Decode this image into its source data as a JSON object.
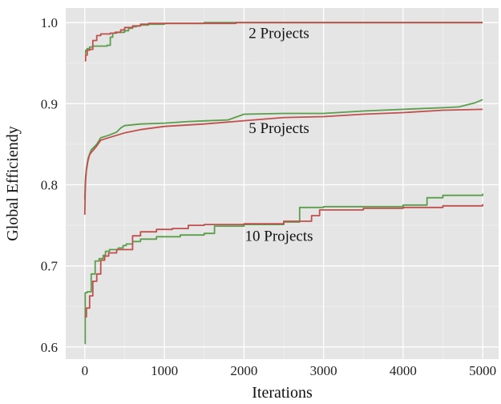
{
  "chart_data": {
    "type": "line",
    "title": "",
    "xlabel": "Iterations",
    "ylabel": "Global Efficiendy",
    "xlim": [
      -240,
      5200
    ],
    "ylim": [
      0.585,
      1.018
    ],
    "xticks": [
      0,
      1000,
      2000,
      3000,
      4000,
      5000
    ],
    "yticks": [
      0.6,
      0.7,
      0.8,
      0.9,
      1.0
    ],
    "xtick_labels": [
      "0",
      "1000",
      "2000",
      "3000",
      "4000",
      "5000"
    ],
    "ytick_labels": [
      "0.6",
      "0.7",
      "0.8",
      "0.9",
      "1.0"
    ],
    "grid": true,
    "background": "#e5e5e5",
    "colors": {
      "green": "#5a9e4b",
      "red": "#c0504d"
    },
    "annotations": [
      {
        "text": "2 Projects",
        "x": 2440,
        "y": 0.981
      },
      {
        "text": "5 Projects",
        "x": 2440,
        "y": 0.864
      },
      {
        "text": "10 Projects",
        "x": 2440,
        "y": 0.731
      }
    ],
    "series": [
      {
        "group": "2 Projects",
        "color": "green",
        "step": true,
        "x": [
          0,
          10,
          30,
          60,
          100,
          200,
          280,
          320,
          350,
          400,
          500,
          550,
          600,
          650,
          700,
          800,
          1000,
          1200,
          1500,
          2000,
          3000,
          4000,
          5000
        ],
        "y": [
          0.962,
          0.966,
          0.968,
          0.97,
          0.971,
          0.971,
          0.972,
          0.982,
          0.987,
          0.988,
          0.99,
          0.993,
          0.995,
          0.996,
          0.997,
          0.998,
          0.999,
          0.999,
          1.0,
          1.0,
          1.0,
          1.0,
          1.0
        ]
      },
      {
        "group": "2 Projects",
        "color": "red",
        "step": true,
        "x": [
          0,
          10,
          30,
          60,
          100,
          150,
          200,
          250,
          320,
          380,
          450,
          500,
          600,
          700,
          800,
          1000,
          1500,
          1900,
          2000,
          3000,
          4000,
          5000
        ],
        "y": [
          0.953,
          0.96,
          0.966,
          0.967,
          0.978,
          0.984,
          0.986,
          0.986,
          0.987,
          0.988,
          0.991,
          0.994,
          0.996,
          0.998,
          0.999,
          0.999,
          0.999,
          1.0,
          1.0,
          1.0,
          1.0,
          1.0
        ]
      },
      {
        "group": "5 Projects",
        "color": "green",
        "step": false,
        "x": [
          0,
          5,
          10,
          20,
          40,
          60,
          80,
          100,
          150,
          200,
          300,
          400,
          450,
          500,
          700,
          1000,
          1300,
          1800,
          2000,
          2500,
          3000,
          3500,
          4000,
          4500,
          4700,
          4900,
          5000
        ],
        "y": [
          0.782,
          0.8,
          0.81,
          0.82,
          0.832,
          0.838,
          0.843,
          0.845,
          0.85,
          0.858,
          0.861,
          0.865,
          0.87,
          0.873,
          0.875,
          0.876,
          0.878,
          0.88,
          0.887,
          0.888,
          0.888,
          0.891,
          0.893,
          0.895,
          0.896,
          0.901,
          0.905
        ]
      },
      {
        "group": "5 Projects",
        "color": "red",
        "step": false,
        "x": [
          0,
          5,
          10,
          20,
          40,
          60,
          80,
          100,
          150,
          200,
          300,
          400,
          500,
          700,
          1000,
          1500,
          2000,
          2500,
          3000,
          3500,
          4000,
          4500,
          5000
        ],
        "y": [
          0.763,
          0.79,
          0.805,
          0.818,
          0.83,
          0.837,
          0.84,
          0.842,
          0.848,
          0.855,
          0.858,
          0.861,
          0.864,
          0.868,
          0.872,
          0.875,
          0.879,
          0.883,
          0.884,
          0.887,
          0.889,
          0.892,
          0.893
        ]
      },
      {
        "group": "10 Projects",
        "color": "green",
        "step": true,
        "x": [
          0,
          5,
          30,
          80,
          130,
          180,
          230,
          260,
          310,
          420,
          480,
          520,
          600,
          700,
          900,
          1200,
          1500,
          1630,
          2000,
          2500,
          2700,
          3000,
          3500,
          4000,
          4300,
          4500,
          5000
        ],
        "y": [
          0.604,
          0.667,
          0.668,
          0.69,
          0.706,
          0.709,
          0.713,
          0.718,
          0.72,
          0.722,
          0.725,
          0.727,
          0.73,
          0.733,
          0.736,
          0.738,
          0.74,
          0.749,
          0.751,
          0.754,
          0.772,
          0.773,
          0.773,
          0.775,
          0.784,
          0.787,
          0.789
        ]
      },
      {
        "group": "10 Projects",
        "color": "red",
        "step": true,
        "x": [
          0,
          20,
          60,
          100,
          150,
          200,
          250,
          300,
          400,
          600,
          700,
          900,
          1100,
          1300,
          1500,
          2000,
          2500,
          2850,
          2950,
          3500,
          4000,
          4500,
          5000
        ],
        "y": [
          0.637,
          0.648,
          0.663,
          0.681,
          0.69,
          0.707,
          0.712,
          0.716,
          0.72,
          0.737,
          0.742,
          0.745,
          0.746,
          0.75,
          0.751,
          0.752,
          0.755,
          0.762,
          0.769,
          0.771,
          0.772,
          0.774,
          0.776
        ]
      }
    ]
  }
}
